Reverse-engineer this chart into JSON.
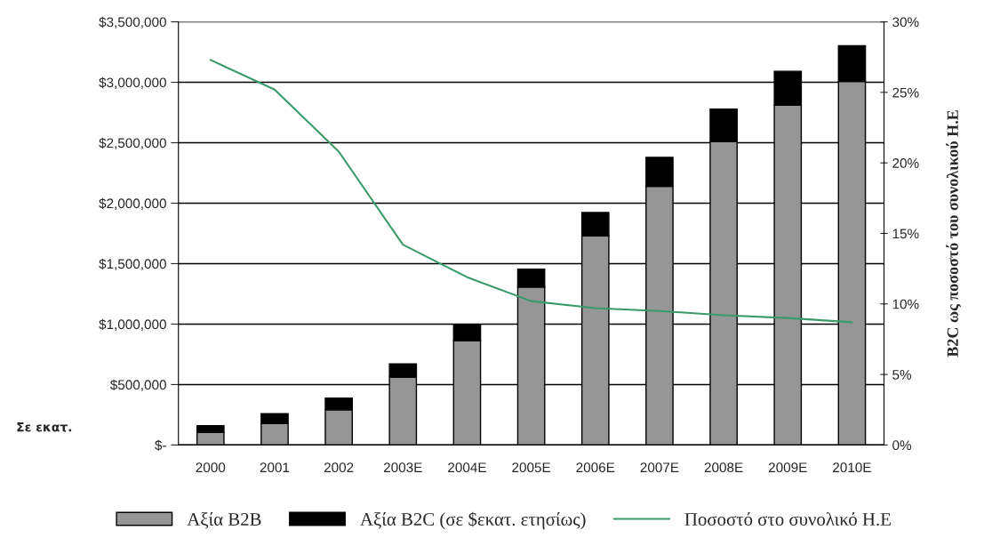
{
  "chart_data": {
    "type": "bar",
    "stacked": true,
    "categories": [
      "2000",
      "2001",
      "2002",
      "2003E",
      "2004E",
      "2005E",
      "2006E",
      "2007E",
      "2008E",
      "2009E",
      "2010E"
    ],
    "series": [
      {
        "name": "Αξία B2B",
        "color": "#969696",
        "values": [
          106000,
          177000,
          291000,
          562000,
          863000,
          1307000,
          1730000,
          2139000,
          2509000,
          2810000,
          3007000
        ]
      },
      {
        "name": "Αξία B2C (σε $εκατ. ετησίως)",
        "color": "#000000",
        "values": [
          54000,
          82000,
          96000,
          109000,
          128000,
          148000,
          193000,
          240000,
          269000,
          281000,
          296000
        ]
      },
      {
        "name": "Ποσοστό στο συνολικό Η.Ε",
        "type": "line",
        "axis": "y2",
        "color": "#3a9a6a",
        "values": [
          27.3,
          25.2,
          20.8,
          14.2,
          11.9,
          10.2,
          9.7,
          9.5,
          9.2,
          9.0,
          8.7
        ]
      }
    ],
    "ylabel": "Σε εκατ.",
    "y2label": "B2C ως ποσοστό του συνολικού Η.Ε",
    "ylim": [
      0,
      3500000
    ],
    "yticks": [
      {
        "value": 0,
        "label": "$-"
      },
      {
        "value": 500000,
        "label": "$500,000"
      },
      {
        "value": 1000000,
        "label": "$1,000,000"
      },
      {
        "value": 1500000,
        "label": "$1,500,000"
      },
      {
        "value": 2000000,
        "label": "$2,000,000"
      },
      {
        "value": 2500000,
        "label": "$2,500,000"
      },
      {
        "value": 3000000,
        "label": "$3,000,000"
      },
      {
        "value": 3500000,
        "label": "$3,500,000"
      }
    ],
    "y2lim": [
      0,
      30
    ],
    "y2ticks": [
      {
        "value": 0,
        "label": "0%"
      },
      {
        "value": 5,
        "label": "5%"
      },
      {
        "value": 10,
        "label": "10%"
      },
      {
        "value": 15,
        "label": "15%"
      },
      {
        "value": 20,
        "label": "20%"
      },
      {
        "value": 25,
        "label": "25%"
      },
      {
        "value": 30,
        "label": "30%"
      }
    ],
    "grid": "y",
    "legend": "bottom"
  }
}
